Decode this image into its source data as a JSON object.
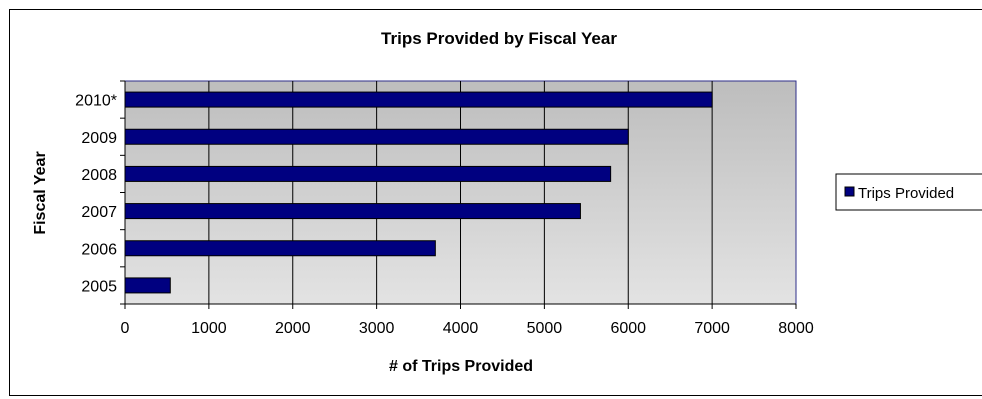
{
  "chart_data": {
    "type": "bar",
    "orientation": "horizontal",
    "title": "Trips Provided by Fiscal Year",
    "xlabel": "# of Trips Provided",
    "ylabel": "Fiscal Year",
    "categories": [
      "2005",
      "2006",
      "2007",
      "2008",
      "2009",
      "2010*"
    ],
    "series": [
      {
        "name": "Trips Provided",
        "values": [
          540,
          3700,
          5430,
          5790,
          6000,
          7000
        ]
      }
    ],
    "xlim": [
      0,
      8000
    ],
    "xticks": [
      "0",
      "1000",
      "2000",
      "3000",
      "4000",
      "5000",
      "6000",
      "7000",
      "8000"
    ],
    "grid": true,
    "legend": "right",
    "colors": {
      "bar": "#000080",
      "plot_background": "#c0c0c0",
      "plot_border": "#2e2e8a"
    }
  }
}
